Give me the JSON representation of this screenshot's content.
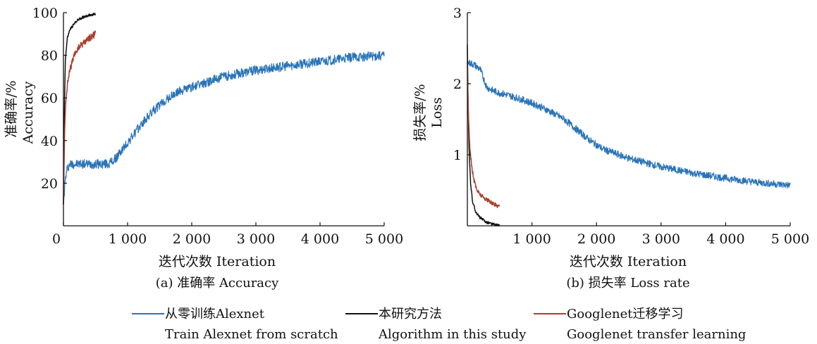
{
  "chart_data": [
    {
      "type": "line",
      "caption": "(a) 准确率 Accuracy",
      "xlabel": "迭代次数 Iteration",
      "ylabel_cn": "准确率/%",
      "ylabel_en": "Accuracy",
      "xlim": [
        0,
        5000
      ],
      "ylim": [
        0,
        100
      ],
      "xticks": [
        "0",
        "1 000",
        "2 000",
        "3 000",
        "4 000",
        "5 000"
      ],
      "xtick_values": [
        0,
        1000,
        2000,
        3000,
        4000,
        5000
      ],
      "yticks": [
        "20",
        "40",
        "60",
        "80",
        "100"
      ],
      "ytick_values": [
        20,
        40,
        60,
        80,
        100
      ],
      "grid": false,
      "series": [
        {
          "key": "scratch",
          "x": [
            0,
            30,
            60,
            100,
            300,
            500,
            700,
            800,
            1000,
            1200,
            1400,
            1600,
            1800,
            2000,
            2200,
            2500,
            3000,
            3500,
            4000,
            4500,
            5000
          ],
          "y": [
            10,
            22,
            27,
            29,
            29,
            29,
            29,
            31,
            39,
            47,
            54,
            59,
            63,
            65,
            67,
            70,
            73,
            75,
            77,
            79,
            80
          ],
          "noise": 2.2
        },
        {
          "key": "ours",
          "x": [
            0,
            15,
            30,
            60,
            100,
            150,
            200,
            250,
            300,
            350,
            400,
            450,
            500
          ],
          "y": [
            10,
            55,
            78,
            88,
            92,
            94,
            96,
            97,
            97.8,
            98.4,
            98.8,
            99.1,
            99.3
          ],
          "noise": 0.6
        },
        {
          "key": "googlenet",
          "x": [
            0,
            20,
            40,
            70,
            100,
            150,
            200,
            250,
            300,
            350,
            400,
            450,
            500
          ],
          "y": [
            10,
            45,
            60,
            68,
            73,
            78,
            82,
            84,
            85.5,
            87,
            88,
            89,
            90
          ],
          "noise": 1.6
        }
      ]
    },
    {
      "type": "line",
      "caption": "(b) 损失率 Loss rate",
      "xlabel": "迭代次数 Iteration",
      "ylabel_cn": "损失率/%",
      "ylabel_en": "Loss",
      "xlim": [
        0,
        5000
      ],
      "ylim": [
        0,
        3
      ],
      "xticks": [
        "1 000",
        "2 000",
        "3 000",
        "4 000",
        "5 000"
      ],
      "xtick_values": [
        1000,
        2000,
        3000,
        4000,
        5000
      ],
      "yticks": [
        "1",
        "2",
        "3"
      ],
      "ytick_values": [
        1,
        2,
        3
      ],
      "grid": false,
      "series": [
        {
          "key": "scratch",
          "x": [
            0,
            100,
            200,
            300,
            400,
            500,
            700,
            900,
            1100,
            1300,
            1500,
            1700,
            1900,
            2100,
            2500,
            3000,
            3500,
            4000,
            4500,
            5000
          ],
          "y": [
            2.3,
            2.27,
            2.2,
            1.95,
            1.9,
            1.87,
            1.82,
            1.76,
            1.69,
            1.6,
            1.5,
            1.35,
            1.2,
            1.08,
            0.95,
            0.83,
            0.74,
            0.67,
            0.61,
            0.57
          ],
          "noise": 0.05
        },
        {
          "key": "ours",
          "x": [
            0,
            10,
            25,
            50,
            80,
            120,
            170,
            230,
            300,
            400,
            500
          ],
          "y": [
            2.55,
            1.8,
            1.1,
            0.6,
            0.35,
            0.22,
            0.14,
            0.09,
            0.05,
            0.02,
            0.0
          ],
          "noise": 0.02
        },
        {
          "key": "googlenet",
          "x": [
            0,
            15,
            40,
            70,
            100,
            150,
            200,
            250,
            300,
            350,
            400,
            450,
            500
          ],
          "y": [
            2.3,
            1.6,
            1.1,
            0.82,
            0.65,
            0.5,
            0.44,
            0.4,
            0.37,
            0.34,
            0.31,
            0.29,
            0.28
          ],
          "noise": 0.03
        }
      ]
    }
  ],
  "legend": [
    {
      "key": "scratch",
      "color": "#2a74b8",
      "label_cn": "从零训练Alexnet",
      "label_en": "Train Alexnet from scratch"
    },
    {
      "key": "ours",
      "color": "#111111",
      "label_cn": "本研究方法",
      "label_en": "Algorithm in this study"
    },
    {
      "key": "googlenet",
      "color": "#a9402f",
      "label_cn": "Googlenet迁移学习",
      "label_en": "Googlenet transfer learning"
    }
  ]
}
